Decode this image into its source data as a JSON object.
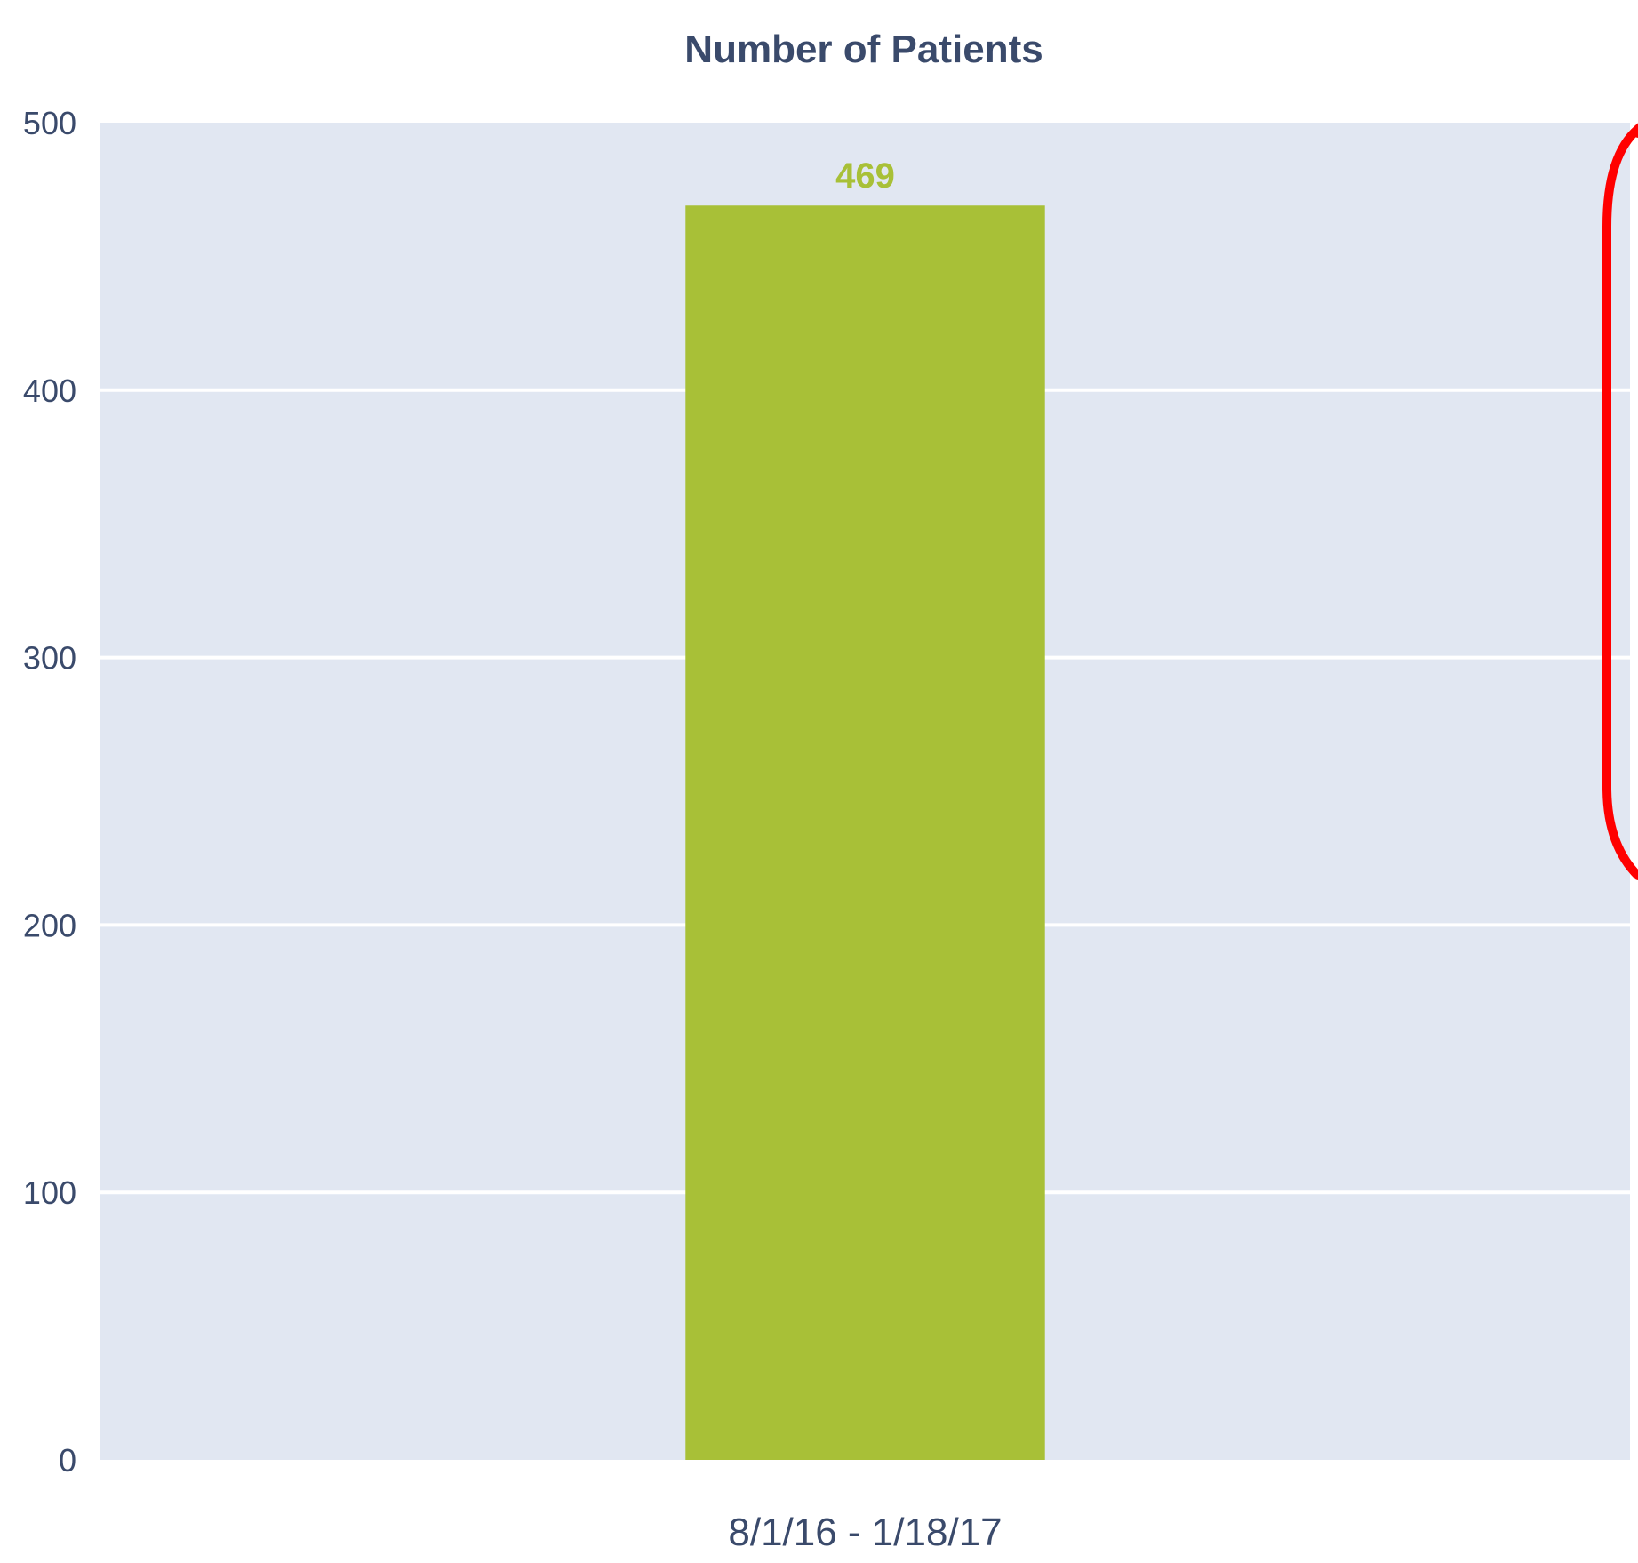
{
  "chart_data": {
    "type": "bar",
    "title": "Number of Patients",
    "categories": [
      "8/1/16 - 1/18/17"
    ],
    "values": [
      469
    ],
    "data_labels": [
      "469"
    ],
    "xlabel": "",
    "ylabel": "",
    "ylim": [
      0,
      500
    ],
    "yticks": [
      0,
      100,
      200,
      300,
      400,
      500
    ],
    "ytick_labels": [
      "0",
      "100",
      "200",
      "300",
      "400",
      "500"
    ],
    "grid": true,
    "legend": "none"
  },
  "colors": {
    "bar": "#a8c037",
    "data_label": "#a8c037",
    "plot_background": "#e1e7f2",
    "gridline": "#ffffff",
    "text": "#3a4a6b",
    "annotation_outline": "#ff0000"
  }
}
